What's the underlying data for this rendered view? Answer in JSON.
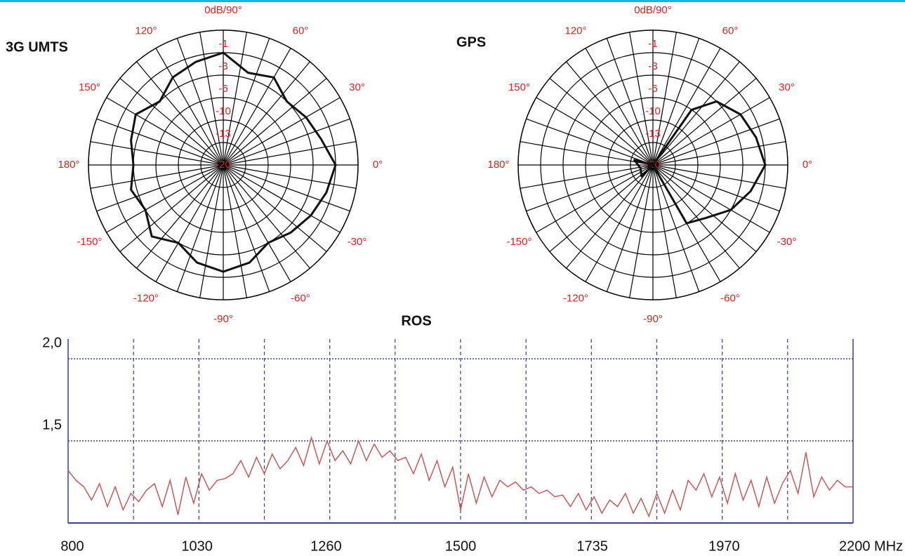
{
  "chart_data": [
    {
      "type": "polar",
      "title": "3G UMTS",
      "color": "#111111",
      "theta": [
        0,
        15,
        30,
        45,
        60,
        75,
        90,
        105,
        120,
        135,
        150,
        165,
        180,
        195,
        210,
        225,
        240,
        255,
        270,
        285,
        300,
        315,
        330,
        345
      ],
      "values": [
        -1,
        -2,
        -2.5,
        -3,
        -2,
        -2.5,
        -1,
        -1.5,
        -2,
        -3,
        -2,
        -2.5,
        -3,
        -2.5,
        -3,
        -2,
        -3,
        -2,
        -1.5,
        -2,
        -3,
        -2.5,
        -2,
        -1.5
      ],
      "rlim": [
        -20,
        0
      ],
      "rticks": [
        -1,
        -3,
        -6,
        -10,
        -13,
        -20
      ],
      "thetaticks": [
        {
          "value": 90,
          "label": "0dB/90°"
        },
        {
          "value": 60,
          "label": "60°"
        },
        {
          "value": 30,
          "label": "30°"
        },
        {
          "value": 0,
          "label": "0°"
        },
        {
          "value": -30,
          "label": "-30°"
        },
        {
          "value": -60,
          "label": "-60°"
        },
        {
          "value": -90,
          "label": "-90°"
        },
        {
          "value": -120,
          "label": "-120°"
        },
        {
          "value": -150,
          "label": "-150°"
        },
        {
          "value": 180,
          "label": "180°"
        },
        {
          "value": 150,
          "label": "150°"
        },
        {
          "value": 120,
          "label": "120°"
        }
      ]
    },
    {
      "type": "polar",
      "title": "GPS",
      "color": "#111111",
      "theta": [
        -75,
        -60,
        -45,
        -30,
        -15,
        0,
        15,
        30,
        45,
        55,
        70,
        120,
        165,
        195,
        225,
        255
      ],
      "values": [
        -20,
        -6,
        -5,
        -3,
        -2,
        -1,
        -1.5,
        -2,
        -3,
        -6,
        -20,
        -20,
        -14,
        -16,
        -15,
        -20
      ],
      "rlim": [
        -20,
        0
      ],
      "rticks": [
        -1,
        -3,
        -6,
        -10,
        -13,
        -20
      ],
      "thetaticks": [
        {
          "value": 90,
          "label": "0dB/90°"
        },
        {
          "value": 60,
          "label": "60°"
        },
        {
          "value": 30,
          "label": "30°"
        },
        {
          "value": 0,
          "label": "0°"
        },
        {
          "value": -30,
          "label": "-30°"
        },
        {
          "value": -60,
          "label": "-60°"
        },
        {
          "value": -90,
          "label": "-90°"
        },
        {
          "value": -120,
          "label": "-120°"
        },
        {
          "value": -150,
          "label": "-150°"
        },
        {
          "value": 180,
          "label": "180°"
        },
        {
          "value": 150,
          "label": "150°"
        },
        {
          "value": 120,
          "label": "120°"
        }
      ]
    },
    {
      "type": "line",
      "title": "ROS",
      "color": "#c8585a",
      "grid_color": "#3a3aa8",
      "x": [
        800,
        814,
        828,
        842,
        856,
        870,
        884,
        898,
        912,
        926,
        940,
        954,
        968,
        982,
        996,
        1010,
        1024,
        1038,
        1052,
        1066,
        1080,
        1094,
        1108,
        1122,
        1136,
        1150,
        1164,
        1178,
        1192,
        1206,
        1220,
        1234,
        1248,
        1262,
        1276,
        1290,
        1304,
        1318,
        1332,
        1346,
        1360,
        1374,
        1388,
        1402,
        1416,
        1430,
        1444,
        1458,
        1472,
        1486,
        1500,
        1514,
        1528,
        1542,
        1556,
        1570,
        1584,
        1598,
        1612,
        1626,
        1640,
        1654,
        1668,
        1682,
        1696,
        1710,
        1724,
        1738,
        1752,
        1766,
        1780,
        1794,
        1808,
        1822,
        1836,
        1850,
        1864,
        1878,
        1892,
        1906,
        1920,
        1934,
        1948,
        1962,
        1976,
        1990,
        2004,
        2018,
        2032,
        2046,
        2060,
        2074,
        2088,
        2102,
        2116,
        2130,
        2144,
        2158,
        2172,
        2186,
        2200
      ],
      "values": [
        1.32,
        1.26,
        1.22,
        1.14,
        1.24,
        1.1,
        1.22,
        1.08,
        1.18,
        1.13,
        1.2,
        1.24,
        1.1,
        1.26,
        1.05,
        1.28,
        1.12,
        1.3,
        1.2,
        1.26,
        1.27,
        1.3,
        1.38,
        1.28,
        1.4,
        1.3,
        1.42,
        1.33,
        1.38,
        1.46,
        1.35,
        1.52,
        1.36,
        1.5,
        1.38,
        1.44,
        1.36,
        1.5,
        1.38,
        1.48,
        1.4,
        1.44,
        1.38,
        1.4,
        1.3,
        1.42,
        1.26,
        1.38,
        1.22,
        1.34,
        1.08,
        1.3,
        1.12,
        1.28,
        1.16,
        1.26,
        1.22,
        1.25,
        1.2,
        1.22,
        1.18,
        1.2,
        1.16,
        1.17,
        1.1,
        1.18,
        1.08,
        1.16,
        1.06,
        1.14,
        1.1,
        1.18,
        1.06,
        1.15,
        1.04,
        1.18,
        1.06,
        1.2,
        1.08,
        1.26,
        1.2,
        1.3,
        1.16,
        1.28,
        1.12,
        1.3,
        1.14,
        1.26,
        1.1,
        1.28,
        1.12,
        1.24,
        1.32,
        1.18,
        1.43,
        1.16,
        1.28,
        1.2,
        1.26,
        1.22,
        1.22
      ],
      "xlim": [
        800,
        2200
      ],
      "xticks": [
        800,
        1030,
        1260,
        1500,
        1735,
        1970,
        {
          "value": 2200,
          "label": "2200 MHz"
        }
      ],
      "xgrid": [
        916.7,
        1033.3,
        1150,
        1266.7,
        1383.3,
        1500,
        1616.7,
        1733.3,
        1850,
        1966.7,
        2083.3
      ],
      "ylim": [
        1,
        2.12
      ],
      "yticks": [
        {
          "value": 2,
          "label": "2,0"
        },
        {
          "value": 1.5,
          "label": "1,5"
        }
      ]
    }
  ]
}
